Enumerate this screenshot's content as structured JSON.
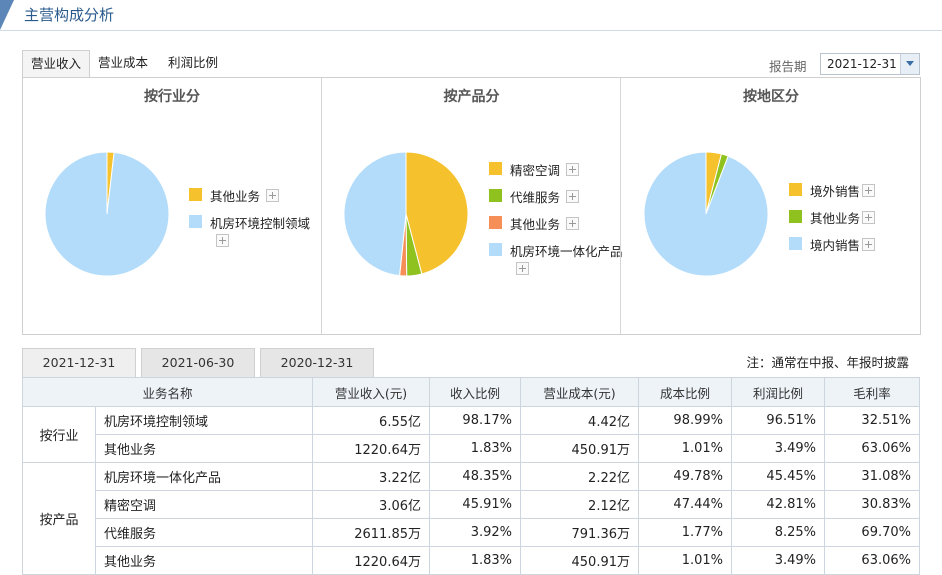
{
  "header": {
    "title": "主营构成分析"
  },
  "tabs": [
    {
      "label": "营业收入",
      "active": true
    },
    {
      "label": "营业成本",
      "active": false
    },
    {
      "label": "利润比例",
      "active": false
    }
  ],
  "report": {
    "label": "报告期",
    "value": "2021-12-31"
  },
  "pies": [
    {
      "title": "按行业分",
      "slices": [
        {
          "label": "其他业务",
          "value": 1.83,
          "color": "#f5c12c"
        },
        {
          "label": "机房环境控制领域",
          "value": 98.17,
          "color": "#b3dcfa"
        }
      ]
    },
    {
      "title": "按产品分",
      "slices": [
        {
          "label": "精密空调",
          "value": 45.91,
          "color": "#f5c12c"
        },
        {
          "label": "代维服务",
          "value": 3.92,
          "color": "#8fc21f"
        },
        {
          "label": "其他业务",
          "value": 1.83,
          "color": "#f58f57"
        },
        {
          "label": "机房环境一体化产品",
          "value": 48.35,
          "color": "#b3dcfa"
        }
      ]
    },
    {
      "title": "按地区分",
      "slices": [
        {
          "label": "境外销售",
          "value": 4.0,
          "color": "#f5c12c"
        },
        {
          "label": "其他业务",
          "value": 1.83,
          "color": "#8fc21f"
        },
        {
          "label": "境内销售",
          "value": 94.17,
          "color": "#b3dcfa"
        }
      ]
    }
  ],
  "period_tabs": [
    {
      "label": "2021-12-31",
      "active": true
    },
    {
      "label": "2021-06-30",
      "active": false
    },
    {
      "label": "2020-12-31",
      "active": false
    }
  ],
  "note": "注：通常在中报、年报时披露",
  "table": {
    "headers": [
      "业务名称",
      "营业收入(元)",
      "收入比例",
      "营业成本(元)",
      "成本比例",
      "利润比例",
      "毛利率"
    ],
    "groups": [
      {
        "label": "按行业",
        "rows": [
          [
            "机房环境控制领域",
            "6.55亿",
            "98.17%",
            "4.42亿",
            "98.99%",
            "96.51%",
            "32.51%"
          ],
          [
            "其他业务",
            "1220.64万",
            "1.83%",
            "450.91万",
            "1.01%",
            "3.49%",
            "63.06%"
          ]
        ]
      },
      {
        "label": "按产品",
        "rows": [
          [
            "机房环境一体化产品",
            "3.22亿",
            "48.35%",
            "2.22亿",
            "49.78%",
            "45.45%",
            "31.08%"
          ],
          [
            "精密空调",
            "3.06亿",
            "45.91%",
            "2.12亿",
            "47.44%",
            "42.81%",
            "30.83%"
          ],
          [
            "代维服务",
            "2611.85万",
            "3.92%",
            "791.36万",
            "1.77%",
            "8.25%",
            "69.70%"
          ],
          [
            "其他业务",
            "1220.64万",
            "1.83%",
            "450.91万",
            "1.01%",
            "3.49%",
            "63.06%"
          ]
        ]
      }
    ]
  }
}
